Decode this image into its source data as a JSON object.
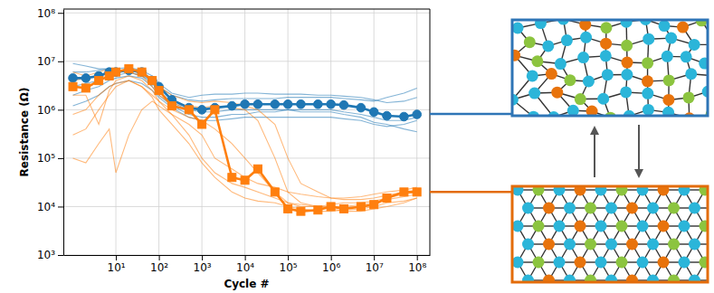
{
  "chart_data": {
    "type": "line",
    "log": true,
    "grid": true,
    "xlabel": "Cycle #",
    "ylabel": "Resistance (Ω)",
    "x": [
      1,
      2,
      4,
      7,
      10,
      20,
      40,
      70,
      100,
      200,
      500,
      1000,
      2000,
      5000,
      10000,
      20000,
      50000,
      100000,
      200000,
      500000,
      1000000,
      2000000,
      5000000,
      10000000,
      20000000,
      50000000,
      100000000
    ],
    "xlim": [
      0.6,
      200000000
    ],
    "xticks": [
      {
        "value": 10,
        "label": "10¹"
      },
      {
        "value": 100,
        "label": "10²"
      },
      {
        "value": 1000,
        "label": "10³"
      },
      {
        "value": 10000,
        "label": "10⁴"
      },
      {
        "value": 100000,
        "label": "10⁵"
      },
      {
        "value": 1000000,
        "label": "10⁶"
      },
      {
        "value": 10000000,
        "label": "10⁷"
      },
      {
        "value": 100000000,
        "label": "10⁸"
      }
    ],
    "ylim": [
      1000,
      120000000
    ],
    "yticks": [
      {
        "value": 1000,
        "label": "10³"
      },
      {
        "value": 10000,
        "label": "10⁴"
      },
      {
        "value": 100000,
        "label": "10⁵"
      },
      {
        "value": 1000000,
        "label": "10⁶"
      },
      {
        "value": 10000000,
        "label": "10⁷"
      },
      {
        "value": 100000000,
        "label": "10⁸"
      }
    ],
    "series": [
      {
        "color": "#1f77b4",
        "marker": "none",
        "line_style": "solid",
        "values": [
          9000000,
          8000000,
          7000000,
          7000000,
          7000000,
          6000000,
          5000000,
          4000000,
          3000000,
          2000000,
          1600000,
          1500000,
          1600000,
          1700000,
          1700000,
          1700000,
          1700000,
          1800000,
          1800000,
          1800000,
          1800000,
          1700000,
          1600000,
          1500000,
          1800000,
          2200000,
          2800000
        ]
      },
      {
        "color": "#1f77b4",
        "marker": "none",
        "line_style": "solid",
        "values": [
          3000000,
          3500000,
          4000000,
          5000000,
          5000000,
          6000000,
          5000000,
          3500000,
          2500000,
          1400000,
          1000000,
          900000,
          900000,
          1000000,
          1000000,
          1000000,
          1000000,
          1000000,
          900000,
          900000,
          900000,
          800000,
          700000,
          550000,
          500000,
          400000,
          350000
        ]
      },
      {
        "color": "#1f77b4",
        "marker": "none",
        "line_style": "solid",
        "values": [
          2000000,
          2500000,
          3000000,
          4000000,
          4500000,
          5000000,
          4500000,
          3000000,
          2000000,
          1200000,
          800000,
          700000,
          700000,
          800000,
          800000,
          900000,
          900000,
          1000000,
          1000000,
          1000000,
          1000000,
          900000,
          800000,
          700000,
          600000,
          600000,
          700000
        ]
      },
      {
        "color": "#1f77b4",
        "marker": "none",
        "line_style": "solid",
        "values": [
          6000000,
          6000000,
          6500000,
          7000000,
          7000000,
          7500000,
          6500000,
          5000000,
          3500000,
          2200000,
          1800000,
          2000000,
          2100000,
          2100000,
          2200000,
          2200000,
          2100000,
          2100000,
          2100000,
          2000000,
          2000000,
          1900000,
          1800000,
          1600000,
          1400000,
          1500000,
          1800000
        ]
      },
      {
        "color": "#1f77b4",
        "marker": "none",
        "line_style": "solid",
        "values": [
          1200000,
          1500000,
          2000000,
          3000000,
          3500000,
          4000000,
          3500000,
          2500000,
          1800000,
          1100000,
          700000,
          600000,
          600000,
          650000,
          700000,
          700000,
          700000,
          700000,
          700000,
          700000,
          700000,
          650000,
          600000,
          500000,
          450000,
          500000,
          600000
        ]
      },
      {
        "color": "#ff7f0e",
        "marker": "none",
        "line_style": "solid",
        "values": [
          100000,
          80000,
          200000,
          400000,
          50000,
          300000,
          1000000,
          1500000,
          1200000,
          800000,
          500000,
          300000,
          100000,
          60000,
          40000,
          30000,
          25000,
          20000,
          18000,
          16000,
          15000,
          15000,
          16000,
          18000,
          20000,
          22000,
          25000
        ]
      },
      {
        "color": "#ff7f0e",
        "marker": "none",
        "line_style": "solid",
        "values": [
          300000,
          400000,
          1000000,
          2000000,
          3000000,
          4000000,
          3000000,
          2000000,
          1500000,
          1000000,
          700000,
          600000,
          400000,
          200000,
          100000,
          50000,
          20000,
          12000,
          10000,
          10000,
          11000,
          12000,
          12000,
          13000,
          15000,
          18000,
          20000
        ]
      },
      {
        "color": "#ff7f0e",
        "marker": "none",
        "line_style": "solid",
        "values": [
          6000000,
          5000000,
          6000000,
          7000000,
          7000000,
          6000000,
          5000000,
          3000000,
          2000000,
          1300000,
          1200000,
          1100000,
          1200000,
          1100000,
          1000000,
          600000,
          100000,
          20000,
          12000,
          10000,
          9000,
          8000,
          8000,
          9000,
          10000,
          12000,
          15000
        ]
      },
      {
        "color": "#ff7f0e",
        "marker": "none",
        "line_style": "solid",
        "values": [
          2000000,
          2000000,
          500000,
          2500000,
          4000000,
          5000000,
          4000000,
          2500000,
          1500000,
          800000,
          300000,
          100000,
          50000,
          30000,
          25000,
          20000,
          15000,
          12000,
          11000,
          10000,
          10000,
          10000,
          11000,
          12000,
          14000,
          16000,
          18000
        ]
      },
      {
        "color": "#ff7f0e",
        "marker": "none",
        "line_style": "solid",
        "values": [
          4000000,
          4500000,
          5000000,
          5500000,
          6000000,
          6500000,
          5500000,
          4000000,
          3000000,
          2000000,
          1500000,
          1400000,
          1500000,
          1400000,
          1200000,
          1000000,
          500000,
          100000,
          30000,
          20000,
          15000,
          14000,
          14000,
          15000,
          17000,
          20000,
          22000
        ]
      },
      {
        "color": "#ff7f0e",
        "marker": "none",
        "line_style": "solid",
        "values": [
          800000,
          1000000,
          2000000,
          3000000,
          3500000,
          4000000,
          3000000,
          1800000,
          1000000,
          500000,
          200000,
          80000,
          40000,
          20000,
          15000,
          13000,
          12000,
          10000,
          9000,
          8000,
          8000,
          8500,
          9000,
          10000,
          12000,
          13000,
          15000
        ]
      },
      {
        "color": "#1f77b4",
        "marker": "circle",
        "line_style": "solid",
        "values": [
          4500000,
          4500000,
          5000000,
          6000000,
          6000000,
          6500000,
          6000000,
          4000000,
          3000000,
          1600000,
          1100000,
          1000000,
          1100000,
          1200000,
          1300000,
          1300000,
          1300000,
          1300000,
          1300000,
          1300000,
          1300000,
          1250000,
          1100000,
          900000,
          750000,
          720000,
          800000
        ]
      },
      {
        "color": "#ff7f0e",
        "marker": "square",
        "line_style": "solid",
        "values": [
          3000000,
          2800000,
          4000000,
          5000000,
          6000000,
          7000000,
          6000000,
          4000000,
          2500000,
          1200000,
          1000000,
          500000,
          1000000,
          40000,
          35000,
          60000,
          20000,
          9000,
          8000,
          8500,
          10000,
          9000,
          10000,
          11000,
          15000,
          20000,
          20000
        ]
      }
    ]
  }
}
